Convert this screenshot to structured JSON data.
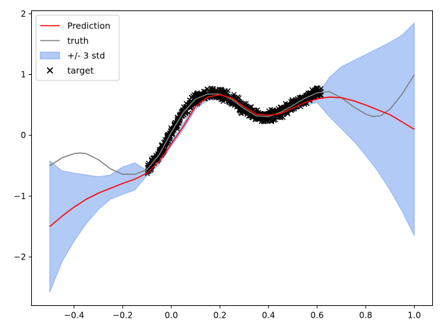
{
  "chart_data": {
    "type": "line",
    "title": "",
    "xlabel": "",
    "ylabel": "",
    "xlim": [
      -0.575,
      1.075
    ],
    "ylim": [
      -2.8,
      2.05
    ],
    "xticks": [
      -0.4,
      -0.2,
      0.0,
      0.2,
      0.4,
      0.6,
      0.8,
      1.0
    ],
    "xtick_labels": [
      "−0.4",
      "−0.2",
      "0.0",
      "0.2",
      "0.4",
      "0.6",
      "0.8",
      "1.0"
    ],
    "yticks": [
      -2,
      -1,
      0,
      1,
      2
    ],
    "ytick_labels": [
      "−2",
      "−1",
      "0",
      "1",
      "2"
    ],
    "grid": false,
    "legend_position": "upper-left",
    "colors": {
      "prediction": "#ff0000",
      "truth": "#808080",
      "band": "#6495ed",
      "target": "#000000"
    },
    "band_opacity": 0.5,
    "series": [
      {
        "name": "Prediction",
        "kind": "line",
        "x": [
          -0.5,
          -0.45,
          -0.4,
          -0.35,
          -0.3,
          -0.25,
          -0.2,
          -0.15,
          -0.1,
          -0.05,
          0.0,
          0.05,
          0.1,
          0.15,
          0.2,
          0.25,
          0.3,
          0.35,
          0.4,
          0.45,
          0.5,
          0.55,
          0.6,
          0.65,
          0.7,
          0.75,
          0.8,
          0.85,
          0.9,
          0.95,
          1.0
        ],
        "y": [
          -1.5,
          -1.33,
          -1.18,
          -1.05,
          -0.95,
          -0.87,
          -0.79,
          -0.72,
          -0.62,
          -0.43,
          -0.14,
          0.15,
          0.48,
          0.63,
          0.67,
          0.61,
          0.47,
          0.35,
          0.33,
          0.36,
          0.45,
          0.54,
          0.6,
          0.63,
          0.62,
          0.57,
          0.5,
          0.42,
          0.34,
          0.22,
          0.1
        ]
      },
      {
        "name": "truth",
        "kind": "line",
        "x": [
          -0.5,
          -0.45,
          -0.4,
          -0.375,
          -0.35,
          -0.3,
          -0.25,
          -0.2,
          -0.15,
          -0.1,
          -0.05,
          0.0,
          0.05,
          0.1,
          0.15,
          0.2,
          0.25,
          0.3,
          0.35,
          0.4,
          0.45,
          0.5,
          0.55,
          0.6,
          0.65,
          0.7,
          0.75,
          0.8,
          0.83,
          0.86,
          0.9,
          0.95,
          1.0
        ],
        "y": [
          -0.5,
          -0.37,
          -0.3,
          -0.29,
          -0.3,
          -0.4,
          -0.55,
          -0.64,
          -0.64,
          -0.56,
          -0.32,
          0.05,
          0.38,
          0.6,
          0.68,
          0.68,
          0.59,
          0.44,
          0.32,
          0.31,
          0.38,
          0.49,
          0.61,
          0.7,
          0.72,
          0.62,
          0.47,
          0.35,
          0.31,
          0.32,
          0.43,
          0.68,
          1.0
        ]
      },
      {
        "name": "+/- 3 std",
        "kind": "band",
        "x": [
          -0.5,
          -0.45,
          -0.4,
          -0.35,
          -0.3,
          -0.25,
          -0.2,
          -0.15,
          -0.1,
          -0.05,
          0.0,
          0.05,
          0.1,
          0.15,
          0.2,
          0.25,
          0.3,
          0.35,
          0.4,
          0.45,
          0.5,
          0.55,
          0.6,
          0.65,
          0.7,
          0.75,
          0.8,
          0.85,
          0.9,
          0.95,
          1.0
        ],
        "upper": [
          -0.42,
          -0.58,
          -0.62,
          -0.65,
          -0.68,
          -0.65,
          -0.52,
          -0.45,
          -0.58,
          -0.38,
          -0.1,
          0.2,
          0.53,
          0.68,
          0.72,
          0.66,
          0.52,
          0.4,
          0.38,
          0.41,
          0.5,
          0.59,
          0.66,
          0.95,
          1.13,
          1.23,
          1.33,
          1.43,
          1.53,
          1.65,
          1.85
        ],
        "lower": [
          -2.58,
          -2.08,
          -1.74,
          -1.45,
          -1.22,
          -1.05,
          -0.97,
          -0.9,
          -0.66,
          -0.48,
          -0.18,
          0.1,
          0.43,
          0.58,
          0.62,
          0.56,
          0.42,
          0.3,
          0.28,
          0.31,
          0.4,
          0.49,
          0.54,
          0.31,
          0.11,
          -0.09,
          -0.33,
          -0.59,
          -0.9,
          -1.25,
          -1.65
        ]
      },
      {
        "name": "target",
        "kind": "scatter",
        "marker": "x",
        "x_range": [
          -0.1,
          0.62
        ],
        "count": 1000,
        "noise": 0.045
      }
    ],
    "legend": [
      {
        "label": "Prediction",
        "style": "line",
        "color": "#ff0000"
      },
      {
        "label": "truth",
        "style": "line",
        "color": "#808080"
      },
      {
        "label": "+/- 3 std",
        "style": "patch",
        "color": "#6495ed"
      },
      {
        "label": "target",
        "style": "marker-x",
        "color": "#000000"
      }
    ]
  }
}
